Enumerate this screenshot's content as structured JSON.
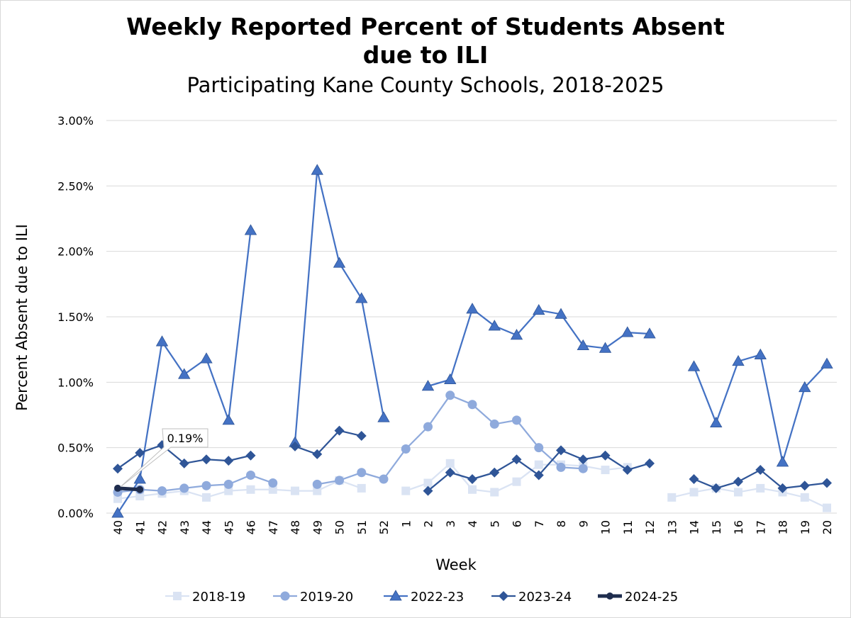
{
  "chart_data": {
    "type": "line",
    "title_line1": "Weekly Reported Percent of Students Absent",
    "title_line2": "due to ILI",
    "subtitle": "Participating Kane County Schools, 2018-2025",
    "xlabel": "Week",
    "ylabel": "Percent Absent due to ILI",
    "categories": [
      "40",
      "41",
      "42",
      "43",
      "44",
      "45",
      "46",
      "47",
      "48",
      "49",
      "50",
      "51",
      "52",
      "1",
      "2",
      "3",
      "4",
      "5",
      "6",
      "7",
      "8",
      "9",
      "10",
      "11",
      "12",
      "13",
      "14",
      "15",
      "16",
      "17",
      "18",
      "19",
      "20"
    ],
    "yticks": [
      "0.00%",
      "0.50%",
      "1.00%",
      "1.50%",
      "2.00%",
      "2.50%",
      "3.00%"
    ],
    "ylim": [
      0,
      0.03
    ],
    "grid": true,
    "legend_position": "bottom",
    "annotation": {
      "text": "0.19%",
      "series": "2024-25",
      "category": "40"
    },
    "series": [
      {
        "name": "2018-19",
        "color": "#dae3f3",
        "marker": "square",
        "values": [
          0.0011,
          0.0013,
          0.0015,
          0.0017,
          0.0012,
          0.0017,
          0.0018,
          0.0018,
          0.0017,
          0.0017,
          0.0025,
          0.0019,
          null,
          0.0017,
          0.0023,
          0.0038,
          0.0018,
          0.0016,
          0.0024,
          0.0037,
          0.0037,
          0.0036,
          0.0033,
          0.0035,
          null,
          0.0012,
          0.0016,
          0.0019,
          0.0016,
          0.0019,
          0.0016,
          0.0012,
          0.0004
        ]
      },
      {
        "name": "2019-20",
        "color": "#8faadc",
        "marker": "circle",
        "values": [
          0.0016,
          0.0018,
          0.0017,
          0.0019,
          0.0021,
          0.0022,
          0.0029,
          0.0023,
          null,
          0.0022,
          0.0025,
          0.0031,
          0.0026,
          0.0049,
          0.0066,
          0.009,
          0.0083,
          0.0068,
          0.0071,
          0.005,
          0.0035,
          0.0034,
          null,
          null,
          null,
          null,
          null,
          null,
          null,
          null,
          null,
          null,
          null
        ]
      },
      {
        "name": "2022-23",
        "color": "#4472c4",
        "marker": "triangle",
        "values": [
          0.0,
          0.0026,
          0.0131,
          0.0106,
          0.0118,
          0.0071,
          0.0216,
          null,
          0.0054,
          0.0262,
          0.0191,
          0.0164,
          0.0073,
          null,
          0.0097,
          0.0102,
          0.0156,
          0.0143,
          0.0136,
          0.0155,
          0.0152,
          0.0128,
          0.0126,
          0.0138,
          0.0137,
          null,
          0.0112,
          0.0069,
          0.0116,
          0.0121,
          0.0039,
          0.0096,
          0.0114
        ]
      },
      {
        "name": "2023-24",
        "color": "#2f5597",
        "marker": "diamond",
        "values": [
          0.0034,
          0.0046,
          0.0052,
          0.0038,
          0.0041,
          0.004,
          0.0044,
          null,
          0.0051,
          0.0045,
          0.0063,
          0.0059,
          null,
          null,
          0.0017,
          0.0031,
          0.0026,
          0.0031,
          0.0041,
          0.0029,
          0.0048,
          0.0041,
          0.0044,
          0.0033,
          0.0038,
          null,
          0.0026,
          0.0019,
          0.0024,
          0.0033,
          0.0019,
          0.0021,
          0.0023
        ]
      },
      {
        "name": "2024-25",
        "color": "#1f2d4e",
        "marker": "circle-bold",
        "values": [
          0.0019,
          0.0018,
          null,
          null,
          null,
          null,
          null,
          null,
          null,
          null,
          null,
          null,
          null,
          null,
          null,
          null,
          null,
          null,
          null,
          null,
          null,
          null,
          null,
          null,
          null,
          null,
          null,
          null,
          null,
          null,
          null,
          null,
          null
        ]
      }
    ]
  }
}
